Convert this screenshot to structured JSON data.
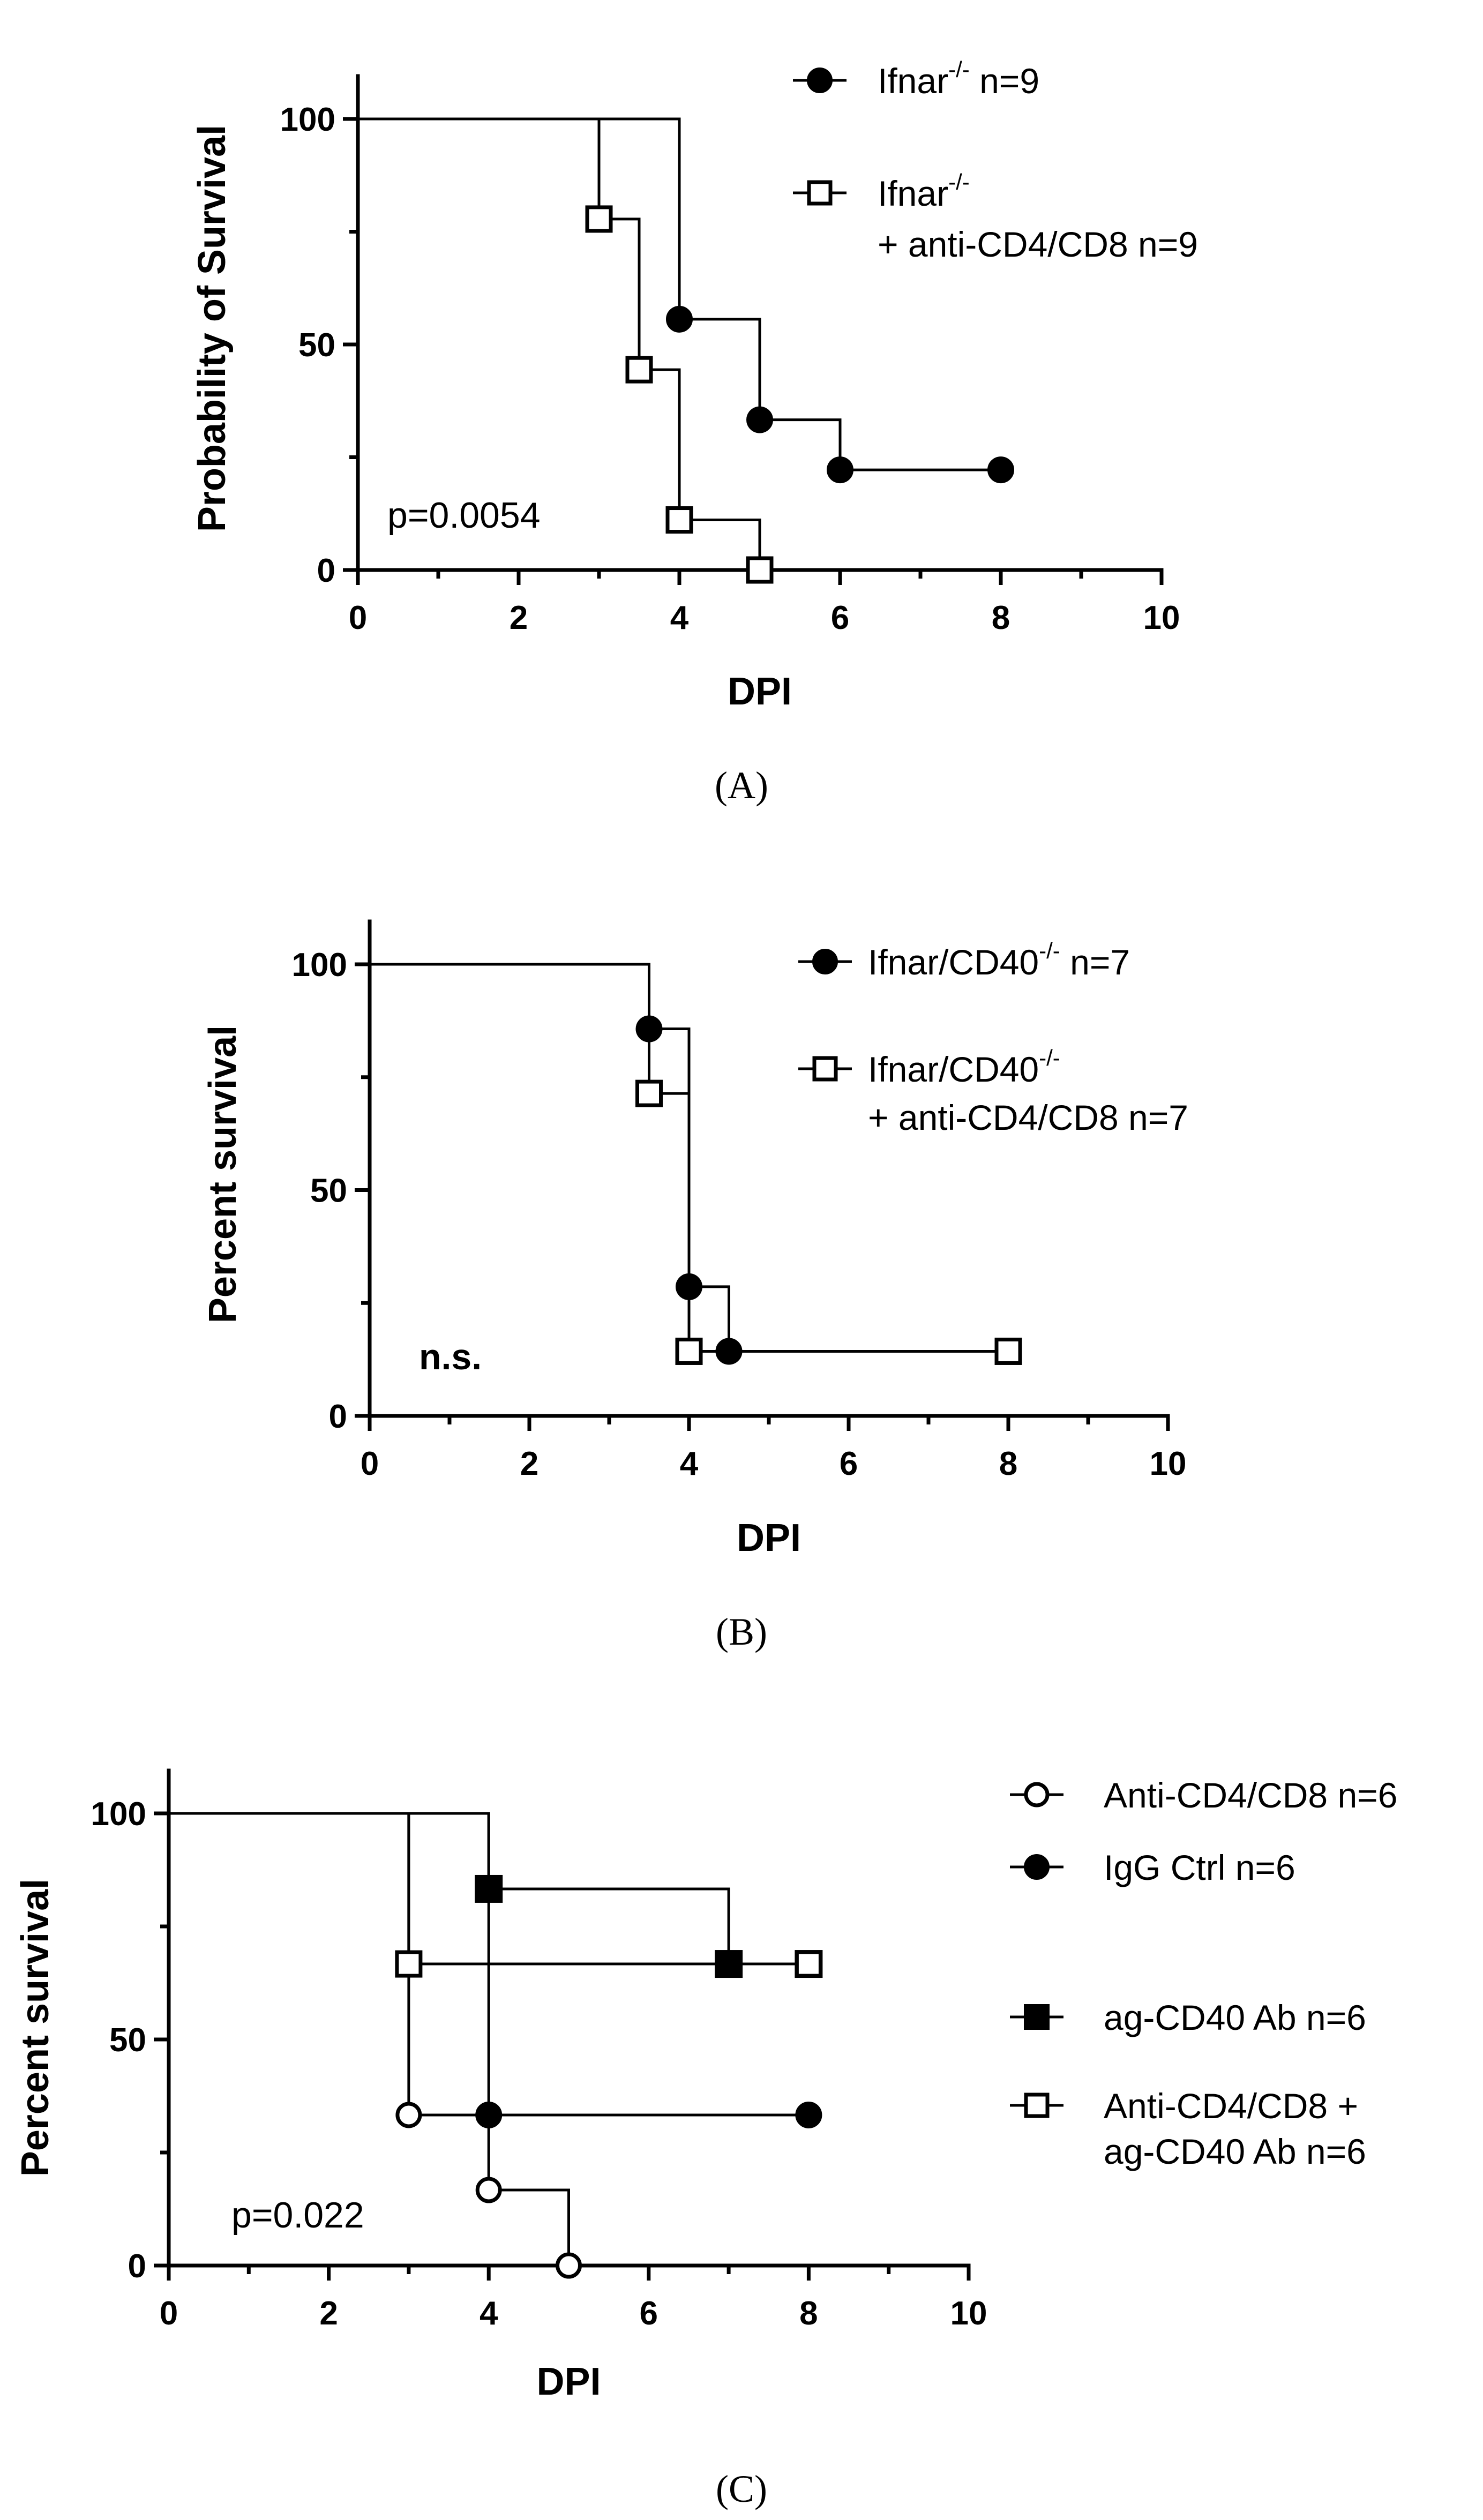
{
  "chart_data": [
    {
      "type": "line",
      "subtype": "kaplan-meier survival",
      "panel_label": "(A)",
      "xlabel": "DPI",
      "ylabel": "Probability of Survival",
      "xlim": [
        0,
        10
      ],
      "ylim": [
        0,
        100
      ],
      "xticks": [
        "0",
        "2",
        "4",
        "6",
        "8",
        "10"
      ],
      "yticks": [
        "0",
        "50",
        "100"
      ],
      "annotation": "p=0.0054",
      "legend_position": "top-right",
      "series": [
        {
          "name": "Ifnar",
          "sup": "-/-",
          "name_suffix": " n=9",
          "marker": "filled-circle",
          "steps": [
            [
              0,
              100
            ],
            [
              4,
              55.6
            ],
            [
              5,
              33.3
            ],
            [
              6,
              22.2
            ],
            [
              8,
              22.2
            ]
          ]
        },
        {
          "name": "Ifnar",
          "sup": "-/-",
          "name_line2": "+ anti-CD4/CD8 n=9",
          "marker": "open-square",
          "steps": [
            [
              0,
              100
            ],
            [
              3,
              77.8
            ],
            [
              3.5,
              44.4
            ],
            [
              4,
              11.1
            ],
            [
              5,
              0
            ]
          ]
        }
      ]
    },
    {
      "type": "line",
      "subtype": "kaplan-meier survival",
      "panel_label": "(B)",
      "xlabel": "DPI",
      "ylabel": "Percent survival",
      "xlim": [
        0,
        10
      ],
      "ylim": [
        0,
        100
      ],
      "xticks": [
        "0",
        "2",
        "4",
        "6",
        "8",
        "10"
      ],
      "yticks": [
        "0",
        "50",
        "100"
      ],
      "annotation": "n.s.",
      "legend_position": "top-right",
      "series": [
        {
          "name": "Ifnar/CD40",
          "sup": "-/-",
          "name_suffix": " n=7",
          "marker": "filled-circle",
          "steps": [
            [
              0,
              100
            ],
            [
              3.5,
              85.7
            ],
            [
              4,
              28.6
            ],
            [
              4.5,
              14.3
            ],
            [
              8,
              14.3
            ]
          ]
        },
        {
          "name": "Ifnar/CD40",
          "sup": "-/-",
          "name_line2": "+ anti-CD4/CD8 n=7",
          "marker": "open-square",
          "steps": [
            [
              0,
              100
            ],
            [
              3.5,
              71.4
            ],
            [
              4,
              14.3
            ],
            [
              8,
              14.3
            ]
          ]
        }
      ]
    },
    {
      "type": "line",
      "subtype": "kaplan-meier survival",
      "panel_label": "(C)",
      "xlabel": "DPI",
      "ylabel": "Percent survival",
      "xlim": [
        0,
        10
      ],
      "ylim": [
        0,
        100
      ],
      "xticks": [
        "0",
        "2",
        "4",
        "6",
        "8",
        "10"
      ],
      "yticks": [
        "0",
        "50",
        "100"
      ],
      "annotation": "p=0.022",
      "legend_position": "right",
      "series": [
        {
          "name": "Anti-CD4/CD8 n=6",
          "marker": "open-circle",
          "steps": [
            [
              0,
              100
            ],
            [
              3,
              33.3
            ],
            [
              4,
              16.7
            ],
            [
              5,
              0
            ]
          ]
        },
        {
          "name": "IgG Ctrl n=6",
          "marker": "filled-circle",
          "steps": [
            [
              0,
              100
            ],
            [
              4,
              33.3
            ],
            [
              8,
              33.3
            ]
          ]
        },
        {
          "name": "ag-CD40 Ab n=6",
          "marker": "filled-square",
          "steps": [
            [
              0,
              100
            ],
            [
              4,
              83.3
            ],
            [
              7,
              66.7
            ],
            [
              8,
              66.7
            ]
          ]
        },
        {
          "name": "Anti-CD4/CD8 +",
          "name_line2": "ag-CD40 Ab n=6",
          "marker": "open-square",
          "steps": [
            [
              0,
              100
            ],
            [
              3,
              66.7
            ],
            [
              8,
              66.7
            ]
          ]
        }
      ]
    }
  ]
}
